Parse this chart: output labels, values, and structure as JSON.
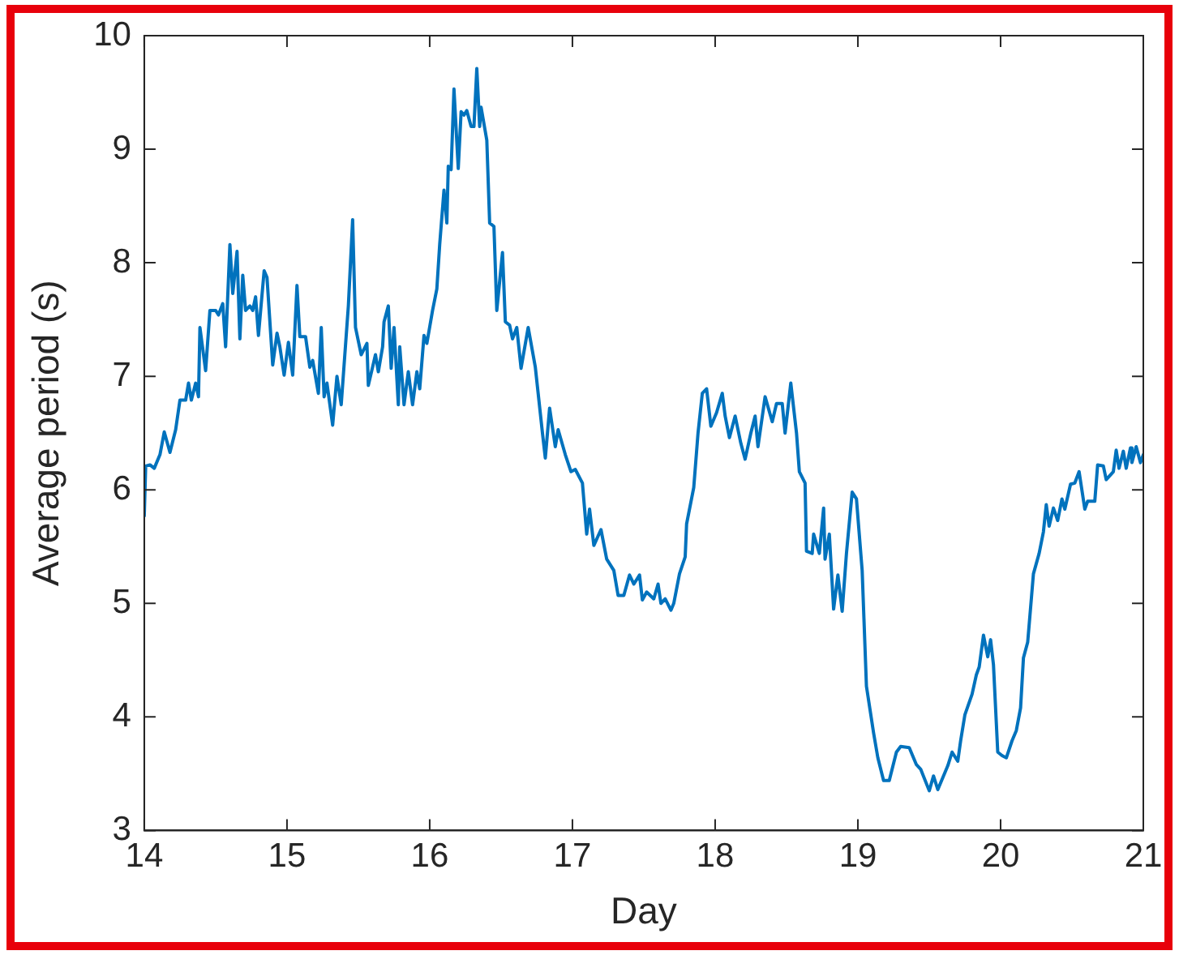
{
  "chart_data": {
    "type": "line",
    "xlabel": "Day",
    "ylabel": "Average period (s)",
    "xlim": [
      14,
      21
    ],
    "ylim": [
      3,
      10
    ],
    "xticks": [
      14,
      15,
      16,
      17,
      18,
      19,
      20,
      21
    ],
    "yticks": [
      3,
      4,
      5,
      6,
      7,
      8,
      9,
      10
    ],
    "grid": false,
    "legend": false,
    "marker": "none",
    "line_style": "solid",
    "series": [
      {
        "color": "#0072bd",
        "x": [
          14.0,
          14.01,
          14.04,
          14.07,
          14.11,
          14.14,
          14.18,
          14.22,
          14.25,
          14.29,
          14.31,
          14.33,
          14.36,
          14.38,
          14.39,
          14.43,
          14.46,
          14.5,
          14.52,
          14.55,
          14.57,
          14.6,
          14.62,
          14.65,
          14.67,
          14.69,
          14.71,
          14.74,
          14.76,
          14.78,
          14.8,
          14.84,
          14.86,
          14.9,
          14.93,
          14.95,
          14.98,
          15.01,
          15.04,
          15.07,
          15.09,
          15.13,
          15.16,
          15.18,
          15.22,
          15.24,
          15.26,
          15.28,
          15.32,
          15.35,
          15.38,
          15.43,
          15.46,
          15.48,
          15.52,
          15.56,
          15.57,
          15.62,
          15.64,
          15.67,
          15.68,
          15.71,
          15.73,
          15.75,
          15.78,
          15.79,
          15.82,
          15.85,
          15.88,
          15.91,
          15.93,
          15.96,
          15.98,
          16.02,
          16.05,
          16.07,
          16.1,
          16.12,
          16.13,
          16.15,
          16.17,
          16.2,
          16.22,
          16.24,
          16.26,
          16.29,
          16.31,
          16.33,
          16.35,
          16.36,
          16.4,
          16.42,
          16.45,
          16.47,
          16.51,
          16.53,
          16.56,
          16.58,
          16.61,
          16.64,
          16.69,
          16.74,
          16.79,
          16.81,
          16.84,
          16.88,
          16.9,
          16.95,
          16.99,
          17.02,
          17.07,
          17.1,
          17.12,
          17.15,
          17.2,
          17.24,
          17.29,
          17.32,
          17.36,
          17.4,
          17.43,
          17.47,
          17.49,
          17.52,
          17.57,
          17.6,
          17.62,
          17.65,
          17.69,
          17.71,
          17.75,
          17.79,
          17.8,
          17.85,
          17.88,
          17.91,
          17.94,
          17.97,
          18.01,
          18.05,
          18.07,
          18.1,
          18.14,
          18.18,
          18.21,
          18.25,
          18.28,
          18.3,
          18.35,
          18.4,
          18.43,
          18.47,
          18.49,
          18.53,
          18.57,
          18.59,
          18.63,
          18.64,
          18.68,
          18.69,
          18.73,
          18.76,
          18.77,
          18.8,
          18.83,
          18.86,
          18.89,
          18.92,
          18.96,
          18.99,
          19.03,
          19.06,
          19.11,
          19.14,
          19.18,
          19.22,
          19.27,
          19.3,
          19.36,
          19.41,
          19.44,
          19.5,
          19.53,
          19.56,
          19.63,
          19.66,
          19.7,
          19.72,
          19.75,
          19.8,
          19.83,
          19.85,
          19.88,
          19.91,
          19.93,
          19.95,
          19.98,
          20.01,
          20.04,
          20.08,
          20.11,
          20.14,
          20.16,
          20.19,
          20.23,
          20.27,
          20.3,
          20.32,
          20.34,
          20.37,
          20.4,
          20.43,
          20.45,
          20.49,
          20.52,
          20.55,
          20.59,
          20.61,
          20.66,
          20.68,
          20.72,
          20.74,
          20.79,
          20.81,
          20.83,
          20.86,
          20.88,
          20.91,
          20.92,
          20.95,
          20.98,
          21.0
        ],
        "values": [
          5.77,
          6.21,
          6.22,
          6.19,
          6.31,
          6.51,
          6.33,
          6.53,
          6.79,
          6.79,
          6.94,
          6.79,
          6.94,
          6.82,
          7.43,
          7.05,
          7.58,
          7.58,
          7.54,
          7.64,
          7.26,
          8.16,
          7.73,
          8.1,
          7.33,
          7.89,
          7.58,
          7.62,
          7.58,
          7.7,
          7.36,
          7.93,
          7.87,
          7.1,
          7.38,
          7.26,
          7.01,
          7.3,
          7.01,
          7.8,
          7.35,
          7.35,
          7.08,
          7.14,
          6.85,
          7.43,
          6.82,
          6.94,
          6.57,
          7.0,
          6.75,
          7.62,
          8.38,
          7.43,
          7.19,
          7.29,
          6.92,
          7.19,
          7.04,
          7.26,
          7.48,
          7.62,
          7.07,
          7.43,
          6.75,
          7.26,
          6.75,
          7.04,
          6.75,
          7.04,
          6.89,
          7.36,
          7.29,
          7.58,
          7.77,
          8.16,
          8.64,
          8.35,
          8.85,
          8.82,
          9.53,
          8.83,
          9.33,
          9.3,
          9.34,
          9.2,
          9.2,
          9.71,
          9.2,
          9.37,
          9.08,
          8.35,
          8.32,
          7.58,
          8.09,
          7.48,
          7.45,
          7.33,
          7.43,
          7.07,
          7.43,
          7.08,
          6.5,
          6.28,
          6.72,
          6.38,
          6.53,
          6.31,
          6.16,
          6.18,
          6.06,
          5.61,
          5.83,
          5.51,
          5.65,
          5.39,
          5.29,
          5.07,
          5.07,
          5.25,
          5.17,
          5.25,
          5.03,
          5.1,
          5.04,
          5.17,
          5.0,
          5.04,
          4.94,
          5.0,
          5.26,
          5.41,
          5.7,
          6.02,
          6.5,
          6.85,
          6.89,
          6.56,
          6.68,
          6.85,
          6.65,
          6.46,
          6.65,
          6.41,
          6.27,
          6.5,
          6.65,
          6.38,
          6.82,
          6.6,
          6.76,
          6.76,
          6.5,
          6.94,
          6.5,
          6.16,
          6.06,
          5.46,
          5.44,
          5.61,
          5.44,
          5.84,
          5.39,
          5.61,
          4.95,
          5.25,
          4.93,
          5.44,
          5.98,
          5.92,
          5.29,
          4.27,
          3.86,
          3.64,
          3.44,
          3.44,
          3.69,
          3.74,
          3.73,
          3.58,
          3.54,
          3.35,
          3.48,
          3.36,
          3.57,
          3.69,
          3.61,
          3.79,
          4.02,
          4.2,
          4.37,
          4.44,
          4.72,
          4.53,
          4.68,
          4.46,
          3.69,
          3.66,
          3.64,
          3.79,
          3.88,
          4.08,
          4.52,
          4.66,
          5.26,
          5.44,
          5.63,
          5.87,
          5.68,
          5.84,
          5.73,
          5.92,
          5.83,
          6.05,
          6.06,
          6.16,
          5.83,
          5.9,
          5.9,
          6.22,
          6.21,
          6.09,
          6.16,
          6.35,
          6.19,
          6.34,
          6.19,
          6.37,
          6.24,
          6.38,
          6.24,
          6.31
        ]
      }
    ]
  }
}
